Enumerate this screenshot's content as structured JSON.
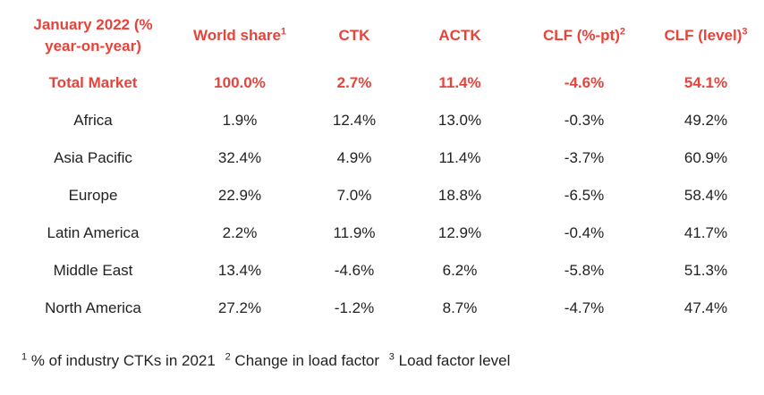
{
  "table": {
    "headers": [
      {
        "label": "January 2022 (% year-on-year)",
        "sup": ""
      },
      {
        "label": "World share",
        "sup": "1"
      },
      {
        "label": "CTK",
        "sup": ""
      },
      {
        "label": "ACTK",
        "sup": ""
      },
      {
        "label": "CLF (%-pt)",
        "sup": "2"
      },
      {
        "label": "CLF (level)",
        "sup": "3"
      }
    ],
    "total_row": [
      "Total Market",
      "100.0%",
      "2.7%",
      "11.4%",
      "-4.6%",
      "54.1%"
    ],
    "rows": [
      [
        "Africa",
        "1.9%",
        "12.4%",
        "13.0%",
        "-0.3%",
        "49.2%"
      ],
      [
        "Asia Pacific",
        "32.4%",
        "4.9%",
        "11.4%",
        "-3.7%",
        "60.9%"
      ],
      [
        "Europe",
        "22.9%",
        "7.0%",
        "18.8%",
        "-6.5%",
        "58.4%"
      ],
      [
        "Latin America",
        "2.2%",
        "11.9%",
        "12.9%",
        "-0.4%",
        "41.7%"
      ],
      [
        "Middle East",
        "13.4%",
        "-4.6%",
        "6.2%",
        "-5.8%",
        "51.3%"
      ],
      [
        "North America",
        "27.2%",
        "-1.2%",
        "8.7%",
        "-4.7%",
        "47.4%"
      ]
    ]
  },
  "footnotes": [
    {
      "sup": "1",
      "text": " % of industry CTKs in 2021"
    },
    {
      "sup": "2",
      "text": " Change in load factor"
    },
    {
      "sup": "3",
      "text": " Load factor level"
    }
  ],
  "colors": {
    "accent": "#e8433a",
    "text": "#222222"
  }
}
